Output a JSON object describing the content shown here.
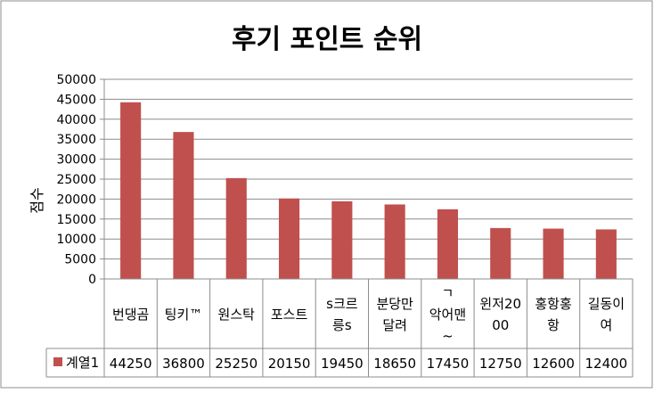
{
  "chart_data": {
    "type": "bar",
    "title": "후기 포인트 순위",
    "ylabel": "점수",
    "xlabel": "",
    "ylim": [
      0,
      50000
    ],
    "y_ticks": [
      "0",
      "5000",
      "10000",
      "15000",
      "20000",
      "25000",
      "30000",
      "35000",
      "40000",
      "45000",
      "50000"
    ],
    "grid": true,
    "legend_placement": "data-table-left",
    "categories": [
      [
        "번댕곰"
      ],
      [
        "팅키™"
      ],
      [
        "원스탁"
      ],
      [
        "포스트"
      ],
      [
        "s크르",
        "릉s"
      ],
      [
        "분당만",
        "달려"
      ],
      [
        "ㄱ",
        "악어맨",
        "~"
      ],
      [
        "윈저20",
        "00"
      ],
      [
        "홍항홍",
        "항"
      ],
      [
        "길동이",
        "여"
      ]
    ],
    "series": [
      {
        "name": "계열1",
        "color": "#c0504d",
        "values": [
          44250,
          36800,
          25250,
          20150,
          19450,
          18650,
          17450,
          12750,
          12600,
          12400
        ],
        "labels": [
          "44250",
          "36800",
          "25250",
          "20150",
          "19450",
          "18650",
          "17450",
          "12750",
          "12600",
          "12400"
        ]
      }
    ]
  }
}
